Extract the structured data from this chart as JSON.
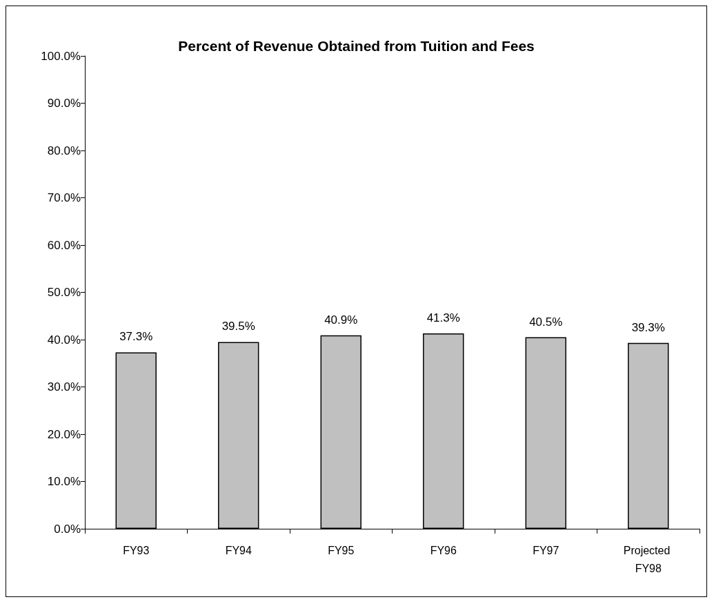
{
  "chart_data": {
    "type": "bar",
    "title": "Percent of Revenue Obtained from Tuition and Fees",
    "categories": [
      "FY93",
      "FY94",
      "FY95",
      "FY96",
      "FY97",
      "Projected FY98"
    ],
    "values": [
      37.3,
      39.5,
      40.9,
      41.3,
      40.5,
      39.3
    ],
    "value_labels": [
      "37.3%",
      "39.5%",
      "40.9%",
      "41.3%",
      "40.5%",
      "39.3%"
    ],
    "color": "#c0c0c0",
    "ylim": [
      0,
      100
    ],
    "yticks": [
      {
        "value": 0,
        "label": "0.0%"
      },
      {
        "value": 10,
        "label": "10.0%"
      },
      {
        "value": 20,
        "label": "20.0%"
      },
      {
        "value": 30,
        "label": "30.0%"
      },
      {
        "value": 40,
        "label": "40.0%"
      },
      {
        "value": 50,
        "label": "50.0%"
      },
      {
        "value": 60,
        "label": "60.0%"
      },
      {
        "value": 70,
        "label": "70.0%"
      },
      {
        "value": 80,
        "label": "80.0%"
      },
      {
        "value": 90,
        "label": "90.0%"
      },
      {
        "value": 100,
        "label": "100.0%"
      }
    ],
    "grid": false
  }
}
